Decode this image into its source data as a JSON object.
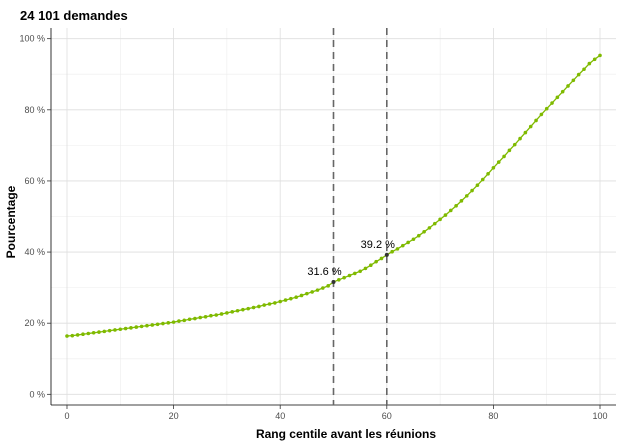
{
  "chart_data": {
    "type": "line",
    "title": "24 101 demandes",
    "xlabel": "Rang centile avant les réunions",
    "ylabel": "Pourcentage",
    "xlim": [
      -3,
      103
    ],
    "ylim": [
      -3,
      103
    ],
    "x_ticks": [
      0,
      20,
      40,
      60,
      80,
      100
    ],
    "x_tick_labels": [
      "0",
      "20",
      "40",
      "60",
      "80",
      "100"
    ],
    "y_ticks": [
      0,
      20,
      40,
      60,
      80,
      100
    ],
    "y_tick_labels": [
      "0 %",
      "20 %",
      "40 %",
      "60 %",
      "80 %",
      "100 %"
    ],
    "grid": true,
    "line_color": "#7fba00",
    "marker_color": "#7fba00",
    "vlines": [
      {
        "x": 50,
        "style": "dashed",
        "color": "#666666"
      },
      {
        "x": 60,
        "style": "dashed",
        "color": "#666666"
      }
    ],
    "annotations": [
      {
        "x": 50,
        "y": 31.6,
        "text": "31.6 %"
      },
      {
        "x": 60,
        "y": 39.2,
        "text": "39.2 %"
      }
    ],
    "series": [
      {
        "x": [
          0,
          1,
          2,
          3,
          4,
          5,
          6,
          7,
          8,
          9,
          10,
          11,
          12,
          13,
          14,
          15,
          16,
          17,
          18,
          19,
          20,
          21,
          22,
          23,
          24,
          25,
          26,
          27,
          28,
          29,
          30,
          31,
          32,
          33,
          34,
          35,
          36,
          37,
          38,
          39,
          40,
          41,
          42,
          43,
          44,
          45,
          46,
          47,
          48,
          49,
          50,
          51,
          52,
          53,
          54,
          55,
          56,
          57,
          58,
          59,
          60,
          61,
          62,
          63,
          64,
          65,
          66,
          67,
          68,
          69,
          70,
          71,
          72,
          73,
          74,
          75,
          76,
          77,
          78,
          79,
          80,
          81,
          82,
          83,
          84,
          85,
          86,
          87,
          88,
          89,
          90,
          91,
          92,
          93,
          94,
          95,
          96,
          97,
          98,
          99,
          100
        ],
        "y": [
          16.4,
          16.5,
          16.7,
          16.9,
          17.1,
          17.3,
          17.5,
          17.7,
          17.9,
          18.1,
          18.3,
          18.5,
          18.7,
          18.9,
          19.1,
          19.3,
          19.5,
          19.7,
          19.9,
          20.1,
          20.3,
          20.6,
          20.8,
          21.1,
          21.3,
          21.6,
          21.8,
          22.1,
          22.3,
          22.6,
          22.9,
          23.2,
          23.5,
          23.8,
          24.1,
          24.4,
          24.7,
          25.1,
          25.4,
          25.7,
          26.1,
          26.5,
          26.9,
          27.3,
          27.8,
          28.3,
          28.8,
          29.3,
          29.9,
          30.5,
          31.6,
          32.2,
          32.8,
          33.4,
          34.0,
          34.6,
          35.4,
          36.3,
          37.3,
          38.2,
          39.2,
          40.1,
          40.9,
          41.8,
          42.7,
          43.6,
          44.6,
          45.7,
          46.8,
          48.0,
          49.2,
          50.4,
          51.7,
          53.0,
          54.4,
          55.8,
          57.3,
          58.8,
          60.4,
          62.0,
          63.7,
          65.3,
          66.9,
          68.6,
          70.2,
          71.9,
          73.6,
          75.3,
          77.0,
          78.7,
          80.3,
          81.9,
          83.5,
          85.1,
          86.7,
          88.3,
          89.9,
          91.4,
          93.0,
          94.2,
          95.3
        ]
      }
    ]
  }
}
